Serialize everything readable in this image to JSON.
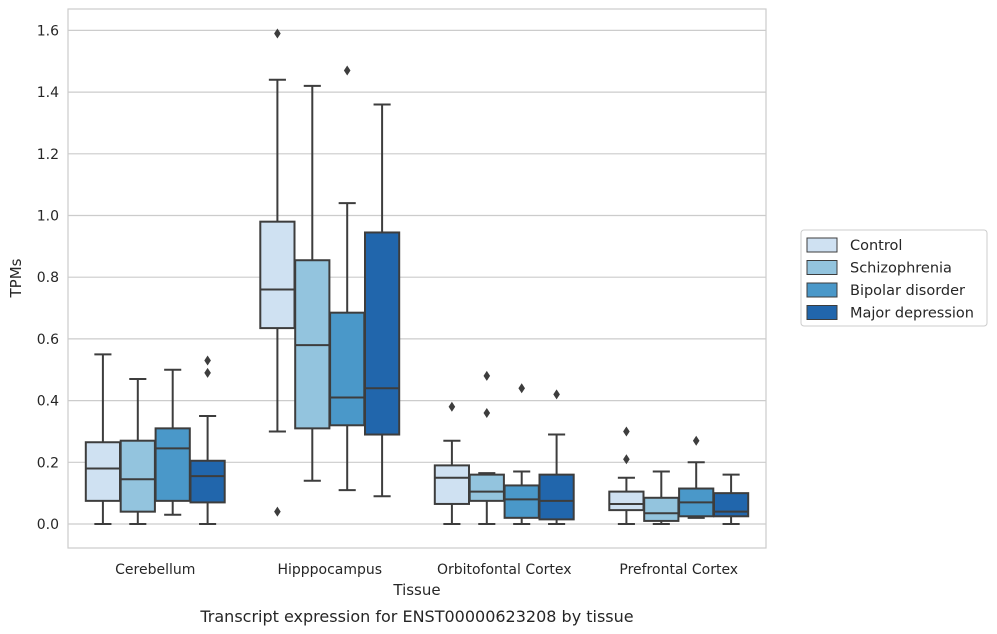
{
  "chart_data": {
    "type": "box",
    "xlabel": "Tissue",
    "ylabel": "TPMs",
    "caption": "Transcript expression for ENST00000623208 by tissue",
    "ylim": [
      -0.08,
      1.67
    ],
    "yticks": [
      "0.0",
      "0.2",
      "0.4",
      "0.6",
      "0.8",
      "1.0",
      "1.2",
      "1.4",
      "1.6"
    ],
    "grid": "horizontal",
    "legend_position": "right",
    "categories": [
      "Cerebellum",
      "Hipppocampus",
      "Orbitofontal Cortex",
      "Prefrontal Cortex"
    ],
    "series": [
      {
        "name": "Control",
        "color": "#cfe1f2",
        "boxes": [
          {
            "whislo": 0.0,
            "q1": 0.075,
            "med": 0.18,
            "q3": 0.265,
            "whishi": 0.55,
            "fliers": []
          },
          {
            "whislo": 0.3,
            "q1": 0.635,
            "med": 0.76,
            "q3": 0.98,
            "whishi": 1.44,
            "fliers": [
              0.04,
              1.59
            ]
          },
          {
            "whislo": 0.0,
            "q1": 0.065,
            "med": 0.15,
            "q3": 0.19,
            "whishi": 0.27,
            "fliers": [
              0.38
            ]
          },
          {
            "whislo": 0.0,
            "q1": 0.045,
            "med": 0.065,
            "q3": 0.105,
            "whishi": 0.15,
            "fliers": [
              0.21,
              0.3
            ]
          }
        ]
      },
      {
        "name": "Schizophrenia",
        "color": "#93c4de",
        "boxes": [
          {
            "whislo": 0.0,
            "q1": 0.04,
            "med": 0.145,
            "q3": 0.27,
            "whishi": 0.47,
            "fliers": []
          },
          {
            "whislo": 0.14,
            "q1": 0.31,
            "med": 0.58,
            "q3": 0.855,
            "whishi": 1.42,
            "fliers": []
          },
          {
            "whislo": 0.0,
            "q1": 0.075,
            "med": 0.105,
            "q3": 0.16,
            "whishi": 0.165,
            "fliers": [
              0.36,
              0.48
            ]
          },
          {
            "whislo": 0.0,
            "q1": 0.01,
            "med": 0.035,
            "q3": 0.085,
            "whishi": 0.17,
            "fliers": []
          }
        ]
      },
      {
        "name": "Bipolar disorder",
        "color": "#4a98c9",
        "boxes": [
          {
            "whislo": 0.03,
            "q1": 0.075,
            "med": 0.245,
            "q3": 0.31,
            "whishi": 0.5,
            "fliers": []
          },
          {
            "whislo": 0.11,
            "q1": 0.32,
            "med": 0.41,
            "q3": 0.685,
            "whishi": 1.04,
            "fliers": [
              1.47
            ]
          },
          {
            "whislo": 0.0,
            "q1": 0.02,
            "med": 0.08,
            "q3": 0.125,
            "whishi": 0.17,
            "fliers": [
              0.44
            ]
          },
          {
            "whislo": 0.02,
            "q1": 0.025,
            "med": 0.07,
            "q3": 0.115,
            "whishi": 0.2,
            "fliers": [
              0.27
            ]
          }
        ]
      },
      {
        "name": "Major depression",
        "color": "#2166ac",
        "boxes": [
          {
            "whislo": 0.0,
            "q1": 0.07,
            "med": 0.155,
            "q3": 0.205,
            "whishi": 0.35,
            "fliers": [
              0.49,
              0.53
            ]
          },
          {
            "whislo": 0.09,
            "q1": 0.29,
            "med": 0.44,
            "q3": 0.945,
            "whishi": 1.36,
            "fliers": []
          },
          {
            "whislo": 0.0,
            "q1": 0.015,
            "med": 0.075,
            "q3": 0.16,
            "whishi": 0.29,
            "fliers": [
              0.42
            ]
          },
          {
            "whislo": 0.0,
            "q1": 0.025,
            "med": 0.04,
            "q3": 0.1,
            "whishi": 0.16,
            "fliers": []
          }
        ]
      }
    ]
  }
}
